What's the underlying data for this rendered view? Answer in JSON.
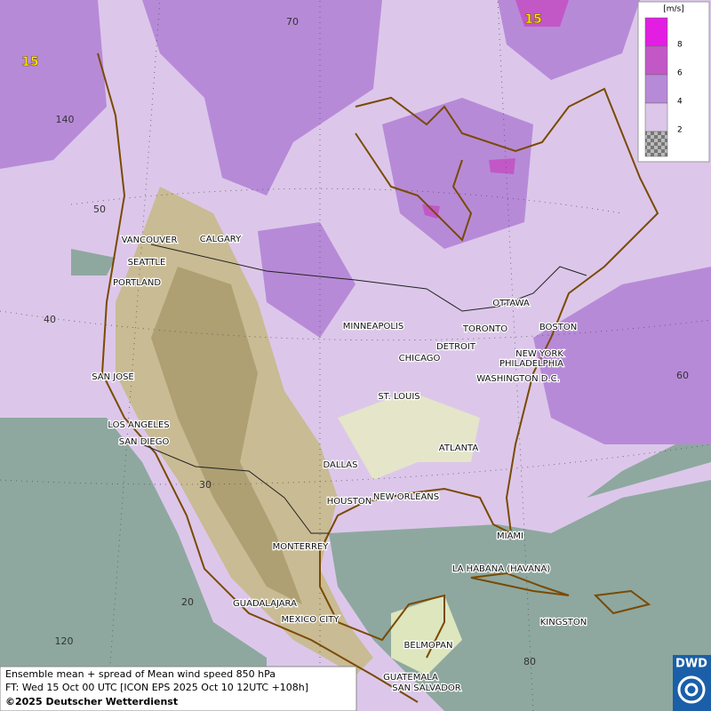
{
  "legend": {
    "unit": "[m/s]",
    "levels": [
      8,
      6,
      4,
      2
    ],
    "colors": [
      "#e21ee2",
      "#c258c6",
      "#b78ad8",
      "#dcc7ea"
    ]
  },
  "grid_labels": [
    70,
    140,
    50,
    40,
    60,
    30,
    20,
    120,
    80
  ],
  "contour_labels": [
    15,
    15
  ],
  "cities": [
    "VANCOUVER",
    "CALGARY",
    "SEATTLE",
    "PORTLAND",
    "SAN JOSE",
    "LOS ANGELES",
    "SAN DIEGO",
    "MINNEAPOLIS",
    "CHICAGO",
    "DETROIT",
    "TORONTO",
    "OTTAWA",
    "BOSTON",
    "NEW YORK",
    "PHILADELPHIA",
    "WASHINGTON D.C.",
    "ST. LOUIS",
    "ATLANTA",
    "DALLAS",
    "HOUSTON",
    "NEW ORLEANS",
    "MIAMI",
    "MONTERREY",
    "LA HABANA (HAVANA)",
    "GUADALAJARA",
    "MEXICO CITY",
    "KINGSTON",
    "BELMOPAN",
    "GUATEMALA",
    "SAN SALVADOR"
  ],
  "footer": {
    "line1": "Ensemble mean + spread of Mean wind speed 850 hPa",
    "line2": "FT: Wed 15 Oct 00 UTC [ICON EPS 2025 Oct 10 12UTC +108h]",
    "line3": "©2025 Deutscher Wetterdienst"
  },
  "logo": "DWD"
}
